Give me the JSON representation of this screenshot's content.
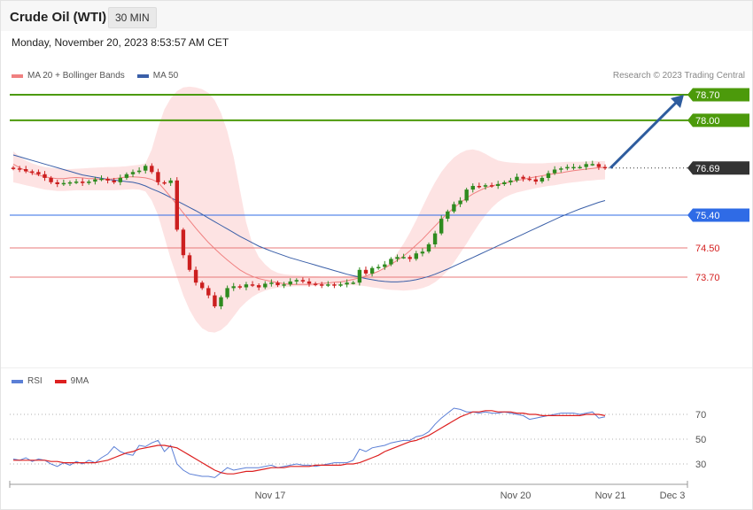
{
  "header": {
    "title": "Crude Oil (WTI)",
    "timeframe": "30 MIN"
  },
  "timestamp": "Monday, November 20, 2023 8:53:57 AM CET",
  "legend": {
    "main": [
      {
        "label": "MA 20 + Bollinger Bands",
        "color": "#f08080"
      },
      {
        "label": "MA 50",
        "color": "#3a5fa8"
      }
    ],
    "rsi": [
      {
        "label": "RSI",
        "color": "#5b7fd6"
      },
      {
        "label": "9MA",
        "color": "#dd2020"
      }
    ]
  },
  "credit": "Research © 2023 Trading Central",
  "colors": {
    "up": "#2e8b1f",
    "down": "#cc1f1f",
    "bands": "#fde3e3",
    "target": "#4c9a0b",
    "pivot": "#2f6be6",
    "support": "#e87a7a",
    "last": "#333333",
    "arrow": "#2e5c9e"
  },
  "chart_data": [
    {
      "type": "candlestick",
      "title": "Crude Oil (WTI)",
      "ylim": [
        72.6,
        79.4
      ],
      "x_labels": [
        "Nov 17",
        "Nov 20",
        "Nov 21",
        "Dec 3"
      ],
      "levels": [
        {
          "value": 78.7,
          "label": "78.70",
          "kind": "target"
        },
        {
          "value": 78.0,
          "label": "78.00",
          "kind": "target"
        },
        {
          "value": 76.69,
          "label": "76.69",
          "kind": "last"
        },
        {
          "value": 75.4,
          "label": "75.40",
          "kind": "pivot"
        },
        {
          "value": 74.5,
          "label": "74.50",
          "kind": "support"
        },
        {
          "value": 73.7,
          "label": "73.70",
          "kind": "support"
        }
      ],
      "projection": {
        "from": 76.69,
        "to": 78.7
      },
      "closes": [
        76.68,
        76.66,
        76.6,
        76.58,
        76.52,
        76.42,
        76.3,
        76.25,
        76.28,
        76.3,
        76.32,
        76.28,
        76.32,
        76.38,
        76.4,
        76.35,
        76.3,
        76.42,
        76.52,
        76.58,
        76.62,
        76.75,
        76.58,
        76.3,
        76.28,
        76.35,
        75.0,
        74.3,
        73.9,
        73.55,
        73.4,
        73.2,
        72.9,
        73.15,
        73.4,
        73.45,
        73.42,
        73.5,
        73.48,
        73.42,
        73.52,
        73.55,
        73.48,
        73.5,
        73.58,
        73.62,
        73.58,
        73.52,
        73.5,
        73.48,
        73.5,
        73.48,
        73.5,
        73.55,
        73.55,
        73.9,
        73.8,
        73.95,
        73.98,
        74.05,
        74.2,
        74.25,
        74.25,
        74.2,
        74.35,
        74.4,
        74.6,
        74.9,
        75.3,
        75.5,
        75.7,
        75.8,
        76.1,
        76.2,
        76.18,
        76.22,
        76.2,
        76.25,
        76.3,
        76.35,
        76.45,
        76.4,
        76.38,
        76.32,
        76.42,
        76.55,
        76.65,
        76.68,
        76.72,
        76.72,
        76.72,
        76.8,
        76.8,
        76.72,
        76.69
      ],
      "ma20": [
        76.8,
        76.7,
        76.62,
        76.55,
        76.5,
        76.45,
        76.42,
        76.4,
        76.4,
        76.42,
        76.43,
        76.42,
        76.4,
        76.4,
        76.38,
        76.38,
        76.4,
        76.42,
        76.45,
        76.45,
        76.44,
        76.42,
        76.38,
        76.3,
        76.1,
        75.9,
        75.68,
        75.46,
        75.25,
        75.04,
        74.84,
        74.65,
        74.48,
        74.32,
        74.17,
        74.03,
        73.9,
        73.8,
        73.72,
        73.66,
        73.62,
        73.58,
        73.55,
        73.52,
        73.5,
        73.5,
        73.5,
        73.5,
        73.51,
        73.53,
        73.54,
        73.56,
        73.57,
        73.6,
        73.64,
        73.68,
        73.73,
        73.79,
        73.86,
        73.95,
        74.05,
        74.16,
        74.28,
        74.42,
        74.58,
        74.74,
        74.92,
        75.1,
        75.28,
        75.45,
        75.6,
        75.74,
        75.87,
        75.98,
        76.07,
        76.15,
        76.2,
        76.24,
        76.28,
        76.31,
        76.35,
        76.38,
        76.42,
        76.45,
        76.48,
        76.51,
        76.54,
        76.56,
        76.59,
        76.62,
        76.64,
        76.66,
        76.68,
        76.7,
        76.71
      ],
      "ma50": [
        77.05,
        77.0,
        76.95,
        76.9,
        76.85,
        76.8,
        76.75,
        76.7,
        76.65,
        76.6,
        76.55,
        76.5,
        76.47,
        76.44,
        76.41,
        76.38,
        76.36,
        76.34,
        76.32,
        76.3,
        76.26,
        76.2,
        76.12,
        76.05,
        75.97,
        75.88,
        75.79,
        75.7,
        75.61,
        75.52,
        75.42,
        75.32,
        75.22,
        75.12,
        75.02,
        74.92,
        74.82,
        74.73,
        74.64,
        74.55,
        74.48,
        74.41,
        74.35,
        74.29,
        74.23,
        74.18,
        74.13,
        74.08,
        74.03,
        73.98,
        73.93,
        73.88,
        73.83,
        73.78,
        73.74,
        73.7,
        73.66,
        73.63,
        73.6,
        73.58,
        73.57,
        73.57,
        73.58,
        73.6,
        73.63,
        73.67,
        73.72,
        73.78,
        73.85,
        73.92,
        74.0,
        74.08,
        74.16,
        74.24,
        74.32,
        74.4,
        74.48,
        74.56,
        74.64,
        74.72,
        74.8,
        74.88,
        74.96,
        75.04,
        75.12,
        75.2,
        75.28,
        75.36,
        75.43,
        75.5,
        75.57,
        75.63,
        75.69,
        75.75,
        75.8
      ],
      "bb_upper": [
        77.15,
        77.0,
        76.9,
        76.82,
        76.76,
        76.72,
        76.7,
        76.68,
        76.66,
        76.66,
        76.67,
        76.68,
        76.69,
        76.7,
        76.71,
        76.72,
        76.72,
        76.73,
        76.74,
        76.76,
        76.78,
        76.82,
        77.2,
        77.8,
        78.3,
        78.6,
        78.8,
        78.9,
        78.92,
        78.9,
        78.85,
        78.75,
        78.55,
        78.2,
        77.7,
        77.0,
        76.1,
        75.2,
        74.6,
        74.25,
        74.05,
        73.9,
        73.82,
        73.78,
        73.76,
        73.75,
        73.74,
        73.73,
        73.73,
        73.72,
        73.72,
        73.72,
        73.72,
        73.73,
        73.74,
        73.76,
        73.78,
        73.82,
        73.88,
        73.98,
        74.14,
        74.36,
        74.62,
        74.92,
        75.26,
        75.62,
        75.98,
        76.3,
        76.58,
        76.8,
        76.98,
        77.1,
        77.18,
        77.2,
        77.16,
        77.08,
        76.98,
        76.9,
        76.86,
        76.84,
        76.83,
        76.82,
        76.82,
        76.82,
        76.82,
        76.83,
        76.84,
        76.85,
        76.86,
        76.86,
        76.86,
        76.87,
        76.88,
        76.88,
        76.88
      ],
      "bb_lower": [
        76.3,
        76.26,
        76.22,
        76.18,
        76.14,
        76.1,
        76.08,
        76.06,
        76.06,
        76.07,
        76.08,
        76.08,
        76.08,
        76.08,
        76.08,
        76.08,
        76.08,
        76.09,
        76.1,
        76.11,
        76.1,
        76.05,
        75.8,
        75.4,
        74.8,
        74.2,
        73.7,
        73.2,
        72.8,
        72.5,
        72.3,
        72.2,
        72.18,
        72.25,
        72.4,
        72.62,
        72.85,
        73.02,
        73.16,
        73.26,
        73.33,
        73.38,
        73.41,
        73.43,
        73.44,
        73.45,
        73.45,
        73.45,
        73.46,
        73.47,
        73.48,
        73.48,
        73.48,
        73.48,
        73.48,
        73.47,
        73.45,
        73.42,
        73.4,
        73.37,
        73.35,
        73.34,
        73.33,
        73.34,
        73.36,
        73.4,
        73.46,
        73.56,
        73.7,
        73.88,
        74.1,
        74.36,
        74.62,
        74.9,
        75.16,
        75.4,
        75.6,
        75.76,
        75.88,
        75.96,
        76.02,
        76.06,
        76.1,
        76.14,
        76.17,
        76.2,
        76.22,
        76.25,
        76.28,
        76.3,
        76.32,
        76.34,
        76.35,
        76.37,
        76.38
      ]
    },
    {
      "type": "line",
      "title": "RSI",
      "ylim": [
        20,
        80
      ],
      "y_ticks": [
        30,
        50,
        70
      ],
      "series": [
        {
          "name": "RSI",
          "values": [
            34,
            33,
            35,
            32,
            34,
            33,
            30,
            28,
            31,
            29,
            32,
            30,
            33,
            31,
            35,
            38,
            44,
            40,
            38,
            37,
            45,
            44,
            47,
            49,
            40,
            45,
            30,
            25,
            22,
            21,
            20,
            20,
            19,
            23,
            27,
            25,
            26,
            27,
            27,
            27,
            28,
            29,
            27,
            28,
            29,
            30,
            29,
            29,
            28,
            29,
            30,
            31,
            31,
            31,
            33,
            42,
            40,
            43,
            44,
            45,
            47,
            48,
            49,
            49,
            52,
            53,
            56,
            62,
            67,
            71,
            75,
            74,
            72,
            72,
            71,
            72,
            71,
            71,
            72,
            71,
            70,
            69,
            66,
            67,
            68,
            69,
            70,
            71,
            71,
            71,
            70,
            71,
            72,
            67,
            68
          ]
        },
        {
          "name": "9MA",
          "values": [
            33,
            33,
            33,
            33,
            33,
            33,
            32,
            32,
            31,
            31,
            31,
            31,
            31,
            31,
            32,
            33,
            35,
            37,
            39,
            40,
            42,
            43,
            44,
            45,
            45,
            44,
            43,
            40,
            37,
            34,
            31,
            28,
            25,
            23,
            22,
            22,
            23,
            24,
            24,
            25,
            26,
            27,
            27,
            27,
            28,
            28,
            28,
            28,
            29,
            29,
            29,
            29,
            29,
            30,
            30,
            31,
            33,
            35,
            37,
            40,
            42,
            44,
            46,
            48,
            49,
            51,
            53,
            56,
            59,
            62,
            65,
            68,
            70,
            72,
            72,
            73,
            73,
            72,
            72,
            72,
            71,
            71,
            70,
            70,
            69,
            69,
            69,
            69,
            69,
            69,
            69,
            70,
            70,
            70,
            69
          ]
        }
      ]
    }
  ]
}
